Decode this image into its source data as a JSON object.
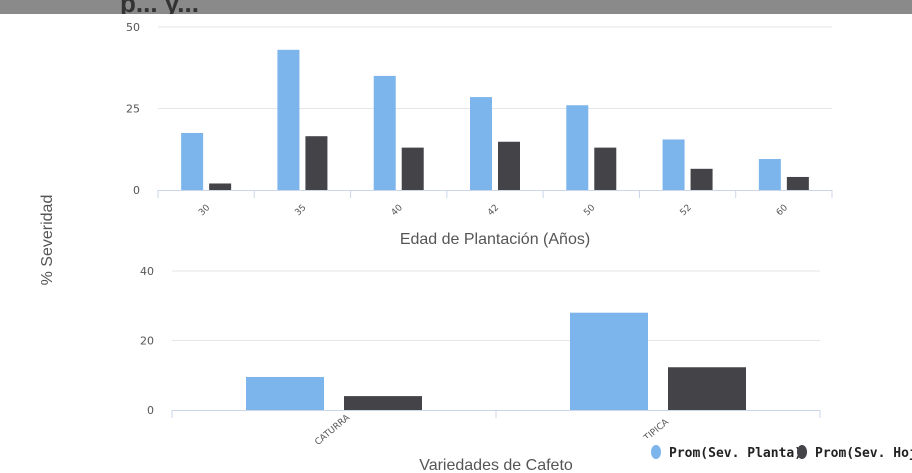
{
  "title_fragment": "p... y...",
  "y_axis_title": "% Severidad",
  "legend": [
    {
      "label": "Prom(Sev. Planta)",
      "color": "#7cb5ec"
    },
    {
      "label": "Prom(Sev. Hoja)",
      "color": "#434348"
    }
  ],
  "chart_data": [
    {
      "type": "bar",
      "xlabel": "Edad de Plantación (Años)",
      "ylabel": "% Severidad",
      "categories": [
        "30",
        "35",
        "40",
        "42",
        "50",
        "52",
        "60"
      ],
      "ylim": [
        0,
        50
      ],
      "yticks": [
        0,
        25,
        50
      ],
      "grid": true,
      "series": [
        {
          "name": "Prom(Sev. Planta)",
          "color": "#7cb5ec",
          "values": [
            17.5,
            43,
            35,
            28.5,
            26,
            15.5,
            9.5
          ]
        },
        {
          "name": "Prom(Sev. Hoja)",
          "color": "#434348",
          "values": [
            2,
            16.5,
            13,
            14.8,
            13,
            6.5,
            4
          ]
        }
      ]
    },
    {
      "type": "bar",
      "xlabel": "Variedades de Cafeto",
      "ylabel": "% Severidad",
      "categories": [
        "CATURRA",
        "TIPICA"
      ],
      "ylim": [
        0,
        40
      ],
      "yticks": [
        0,
        20,
        40
      ],
      "grid": true,
      "legend_position": "bottom-right",
      "series": [
        {
          "name": "Prom(Sev. Planta)",
          "color": "#7cb5ec",
          "values": [
            9.5,
            28
          ]
        },
        {
          "name": "Prom(Sev. Hoja)",
          "color": "#434348",
          "values": [
            4,
            12.3
          ]
        }
      ]
    }
  ]
}
